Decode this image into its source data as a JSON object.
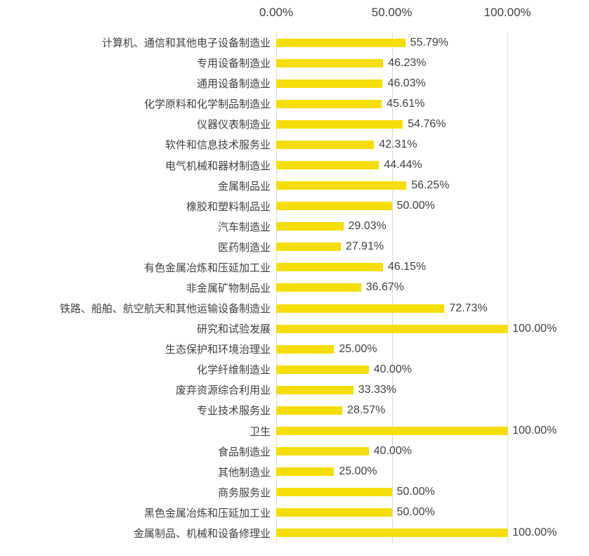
{
  "chart_data": {
    "type": "bar",
    "orientation": "horizontal",
    "title": "",
    "xlabel": "",
    "ylabel": "",
    "xlim": [
      0,
      100
    ],
    "grid": "vertical",
    "legend_position": "none",
    "x_ticks": [
      {
        "label": "0.00%",
        "value": 0
      },
      {
        "label": "50.00%",
        "value": 50
      },
      {
        "label": "100.00%",
        "value": 100
      }
    ],
    "bar_color": "#F5DE08",
    "gridline_color": "#D9D9D9",
    "text_color": "#404040",
    "categories": [
      "计算机、通信和其他电子设备制造业",
      "专用设备制造业",
      "通用设备制造业",
      "化学原料和化学制品制造业",
      "仪器仪表制造业",
      "软件和信息技术服务业",
      "电气机械和器材制造业",
      "金属制品业",
      "橡胶和塑料制品业",
      "汽车制造业",
      "医药制造业",
      "有色金属冶炼和压延加工业",
      "非金属矿物制品业",
      "铁路、船舶、航空航天和其他运输设备制造业",
      "研究和试验发展",
      "生态保护和环境治理业",
      "化学纤维制造业",
      "废弃资源综合利用业",
      "专业技术服务业",
      "卫生",
      "食品制造业",
      "其他制造业",
      "商务服务业",
      "黑色金属冶炼和压延加工业",
      "金属制品、机械和设备修理业"
    ],
    "values": [
      55.79,
      46.23,
      46.03,
      45.61,
      54.76,
      42.31,
      44.44,
      56.25,
      50.0,
      29.03,
      27.91,
      46.15,
      36.67,
      72.73,
      100.0,
      25.0,
      40.0,
      33.33,
      28.57,
      100.0,
      40.0,
      25.0,
      50.0,
      50.0,
      100.0
    ],
    "value_labels": [
      "55.79%",
      "46.23%",
      "46.03%",
      "45.61%",
      "54.76%",
      "42.31%",
      "44.44%",
      "56.25%",
      "50.00%",
      "29.03%",
      "27.91%",
      "46.15%",
      "36.67%",
      "72.73%",
      "100.00%",
      "25.00%",
      "40.00%",
      "33.33%",
      "28.57%",
      "100.00%",
      "40.00%",
      "25.00%",
      "50.00%",
      "50.00%",
      "100.00%"
    ]
  }
}
